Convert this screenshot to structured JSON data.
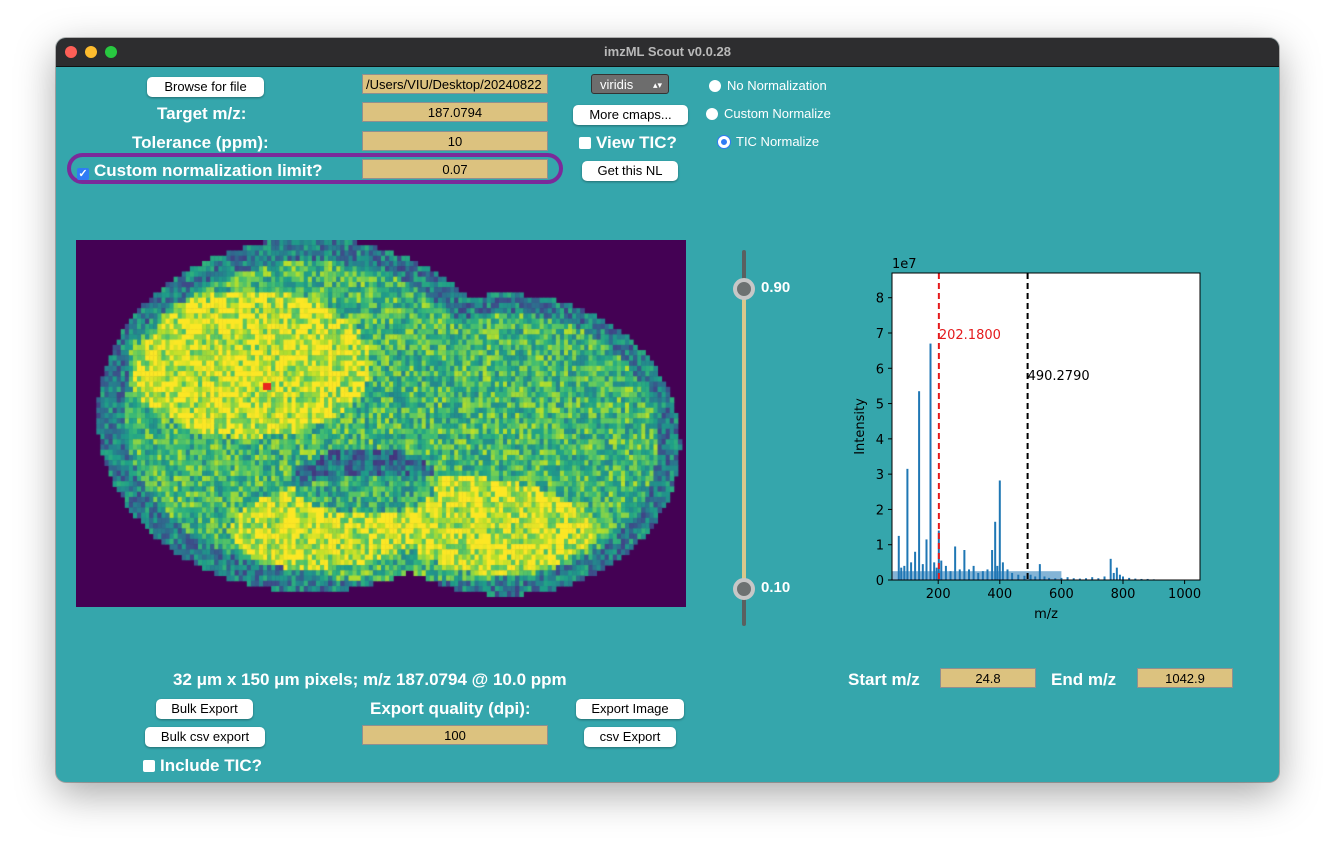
{
  "window": {
    "title": "imzML Scout v0.0.28",
    "traffic_lights": [
      "#fe5f57",
      "#febc2e",
      "#28c840"
    ]
  },
  "top": {
    "browse_label": "Browse for file",
    "file_path": "/Users/VIU/Desktop/20240822",
    "cmap_selected": "viridis",
    "more_cmaps_label": "More cmaps...",
    "target_label": "Target m/z:",
    "target_value": "187.0794",
    "tolerance_label": "Tolerance (ppm):",
    "tolerance_value": "10",
    "view_tic_label": "View TIC?",
    "custom_nl_label": "Custom normalization limit?",
    "custom_nl_value": "0.07",
    "get_nl_label": "Get this NL",
    "normalization_options": [
      "No Normalization",
      "Custom Normalize",
      "TIC Normalize"
    ],
    "normalization_selected": "TIC Normalize"
  },
  "slider": {
    "high_value": "0.90",
    "low_value": "0.10"
  },
  "image_info": "32 μm x 150 μm pixels; m/z 187.0794 @ 10.0 ppm",
  "bottom": {
    "bulk_export_label": "Bulk Export",
    "bulk_csv_label": "Bulk csv export",
    "include_tic_label": "Include TIC?",
    "export_quality_label": "Export quality (dpi):",
    "dpi_value": "100",
    "export_image_label": "Export Image",
    "csv_export_label": "csv Export",
    "start_mz_label": "Start m/z",
    "start_mz_value": "24.8",
    "end_mz_label": "End m/z",
    "end_mz_value": "1042.9"
  },
  "colors": {
    "background": "#35a6ac",
    "entry": "#dcc27f",
    "highlight_ring": "#7b2a9a",
    "red_line": "#e41a1c",
    "bars": "#1f77b4"
  },
  "chart_data": {
    "type": "bar",
    "xlabel": "m/z",
    "ylabel": "Intensity",
    "y_scale_label": "1e7",
    "xlim": [
      50,
      1050
    ],
    "ylim": [
      0,
      8.7
    ],
    "xticks": [
      "200",
      "400",
      "600",
      "800",
      "1000"
    ],
    "yticks": [
      "0",
      "1",
      "2",
      "3",
      "4",
      "5",
      "6",
      "7",
      "8"
    ],
    "markers": [
      {
        "label": "202.1800",
        "x": 202.18,
        "color": "#e41a1c"
      },
      {
        "label": "490.2790",
        "x": 490.279,
        "color": "#000000"
      }
    ],
    "peaks_x": [
      72,
      80,
      90,
      100,
      112,
      125,
      138,
      150,
      162,
      175,
      187,
      195,
      202,
      210,
      225,
      240,
      255,
      270,
      285,
      300,
      315,
      330,
      345,
      360,
      375,
      385,
      392,
      400,
      410,
      425,
      440,
      460,
      480,
      500,
      515,
      530,
      545,
      560,
      580,
      600,
      620,
      640,
      660,
      680,
      700,
      720,
      740,
      760,
      770,
      780,
      790,
      800,
      820,
      840,
      860,
      880,
      900
    ],
    "peaks_y": [
      1.25,
      0.35,
      0.4,
      3.15,
      0.5,
      0.8,
      5.35,
      0.45,
      1.15,
      6.7,
      0.5,
      0.35,
      1.4,
      0.55,
      0.4,
      0.25,
      0.95,
      0.3,
      0.85,
      0.3,
      0.4,
      0.2,
      0.25,
      0.3,
      0.85,
      1.65,
      0.4,
      2.82,
      0.5,
      0.3,
      0.2,
      0.15,
      0.12,
      0.15,
      0.1,
      0.45,
      0.1,
      0.06,
      0.05,
      0.06,
      0.08,
      0.05,
      0.04,
      0.05,
      0.08,
      0.05,
      0.1,
      0.6,
      0.2,
      0.35,
      0.15,
      0.1,
      0.06,
      0.04,
      0.03,
      0.03,
      0.02
    ]
  }
}
